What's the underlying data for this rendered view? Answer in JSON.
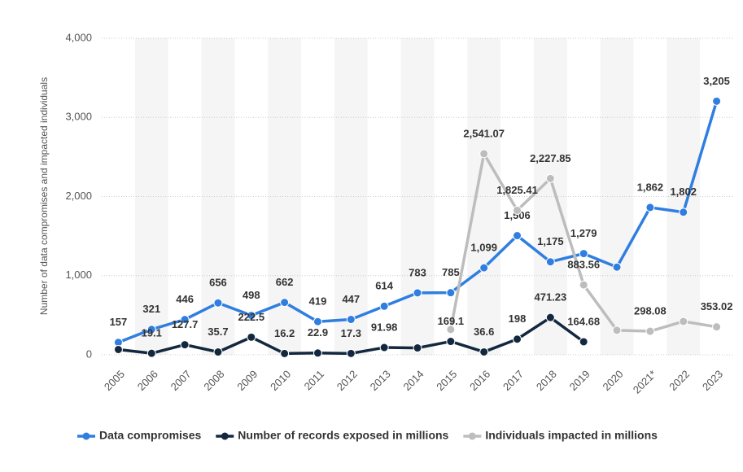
{
  "chart_data": {
    "type": "line",
    "ylabel": "Number of data compromises and impacted individuals",
    "categories": [
      "2005",
      "2006",
      "2007",
      "2008",
      "2009",
      "2010",
      "2011",
      "2012",
      "2013",
      "2014",
      "2015",
      "2016",
      "2017",
      "2018",
      "2019",
      "2020",
      "2021*",
      "2022",
      "2023"
    ],
    "series": [
      {
        "name": "Data compromises",
        "color": "#2f7ee0",
        "values": [
          157,
          321,
          446,
          656,
          498,
          662,
          419,
          447,
          614,
          783,
          785,
          1099,
          1506,
          1175,
          1279,
          1108,
          1862,
          1802,
          3205
        ],
        "value_labels": [
          "157",
          "321",
          "446",
          "656",
          "498",
          "662",
          "419",
          "447",
          "614",
          "783",
          "785",
          "1,099",
          "1,506",
          "1,175",
          "1,279",
          null,
          "1,862",
          "1,802",
          "3,205"
        ]
      },
      {
        "name": "Number of records exposed in millions",
        "color": "#13283e",
        "values": [
          66.9,
          19.1,
          127.7,
          35.7,
          222.5,
          16.2,
          22.9,
          17.3,
          91.98,
          87,
          169.1,
          36.6,
          198,
          471.23,
          164.68,
          null,
          null,
          null,
          null
        ],
        "value_labels": [
          null,
          "19.1",
          "127.7",
          "35.7",
          "222.5",
          "16.2",
          "22.9",
          "17.3",
          "91.98",
          null,
          "169.1",
          "36.6",
          "198",
          "471.23",
          "164.68",
          null,
          null,
          null,
          null
        ]
      },
      {
        "name": "Individuals impacted in millions",
        "color": "#bdbdbd",
        "values": [
          null,
          null,
          null,
          null,
          null,
          null,
          null,
          null,
          null,
          null,
          320,
          2541.07,
          1825.41,
          2227.85,
          883.56,
          310,
          298.08,
          422,
          353.02
        ],
        "value_labels": [
          null,
          null,
          null,
          null,
          null,
          null,
          null,
          null,
          null,
          null,
          null,
          "2,541.07",
          "1,825.41",
          "2,227.85",
          "883.56",
          null,
          "298.08",
          null,
          "353.02"
        ]
      }
    ],
    "ylim": [
      0,
      4000
    ],
    "yticks": [
      0,
      {
        "value": 1000,
        "label": "1,000"
      },
      {
        "value": 2000,
        "label": "2,000"
      },
      {
        "value": 3000,
        "label": "3,000"
      },
      {
        "value": 4000,
        "label": "4,000"
      }
    ],
    "grid": true,
    "legend": "bottom"
  }
}
